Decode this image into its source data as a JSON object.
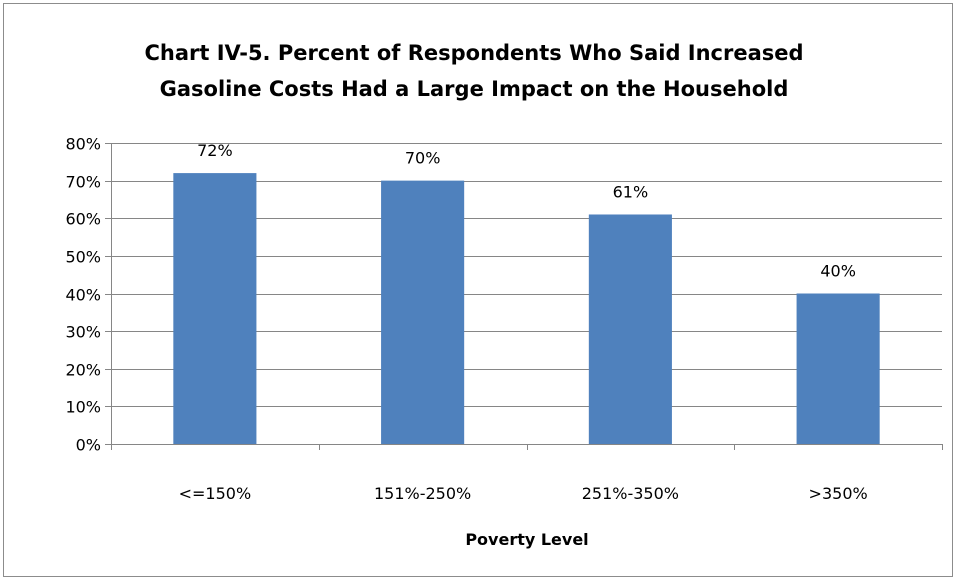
{
  "chart_data": {
    "type": "bar",
    "title_lines": [
      "Chart IV-5. Percent of Respondents Who Said Increased",
      "Gasoline Costs Had a Large Impact on the Household"
    ],
    "categories": [
      "<=150%",
      "151%-250%",
      "251%-350%",
      ">350%"
    ],
    "values": [
      72,
      70,
      61,
      40
    ],
    "data_labels": [
      "72%",
      "70%",
      "61%",
      "40%"
    ],
    "xlabel": "Poverty Level",
    "ylabel": "",
    "ylim": [
      0,
      80
    ],
    "yticks": [
      0,
      10,
      20,
      30,
      40,
      50,
      60,
      70,
      80
    ],
    "ytick_labels": [
      "0%",
      "10%",
      "20%",
      "30%",
      "40%",
      "50%",
      "60%",
      "70%",
      "80%"
    ],
    "grid": true,
    "legend": "none",
    "bar_color": "#4F81BD"
  }
}
